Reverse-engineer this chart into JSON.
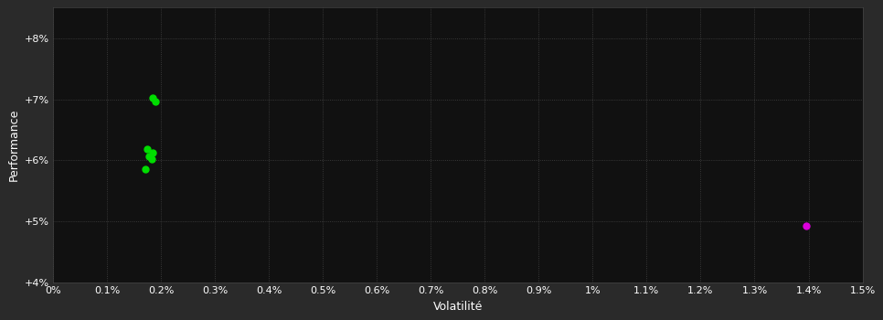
{
  "background_color": "#2a2a2a",
  "plot_bg_color": "#111111",
  "grid_color": "#444444",
  "text_color": "#ffffff",
  "xlabel": "Volatilité",
  "ylabel": "Performance",
  "xlim": [
    0,
    0.015
  ],
  "ylim": [
    0.04,
    0.085
  ],
  "xtick_vals": [
    0.0,
    0.001,
    0.002,
    0.003,
    0.004,
    0.005,
    0.006,
    0.007,
    0.008,
    0.009,
    0.01,
    0.011,
    0.012,
    0.013,
    0.014,
    0.015
  ],
  "xtick_labels": [
    "0%",
    "0.1%",
    "0.2%",
    "0.3%",
    "0.4%",
    "0.5%",
    "0.6%",
    "0.7%",
    "0.8%",
    "0.9%",
    "1%",
    "1.1%",
    "1.2%",
    "1.3%",
    "1.4%",
    "1.5%"
  ],
  "ytick_vals": [
    0.04,
    0.05,
    0.06,
    0.07,
    0.08
  ],
  "ytick_labels": [
    "+4%",
    "+5%",
    "+6%",
    "+7%",
    "+8%"
  ],
  "green_points": [
    [
      0.00185,
      0.0702
    ],
    [
      0.0019,
      0.0697
    ],
    [
      0.00175,
      0.0618
    ],
    [
      0.00185,
      0.0612
    ],
    [
      0.00178,
      0.0607
    ],
    [
      0.00182,
      0.0602
    ],
    [
      0.0017,
      0.0585
    ]
  ],
  "magenta_point": [
    0.01395,
    0.0493
  ],
  "green_color": "#00dd00",
  "magenta_color": "#dd00dd",
  "point_size": 25,
  "axis_fontsize": 9,
  "tick_fontsize": 8
}
